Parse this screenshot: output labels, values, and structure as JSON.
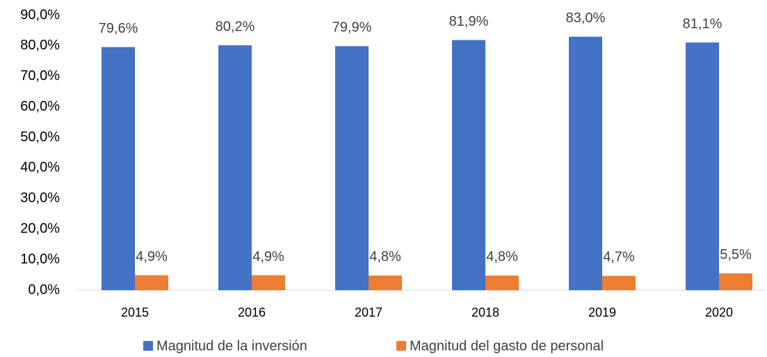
{
  "chart_data": {
    "type": "bar",
    "categories": [
      "2015",
      "2016",
      "2017",
      "2018",
      "2019",
      "2020"
    ],
    "series": [
      {
        "name": "Magnitud de la inversión",
        "color": "#4472c4",
        "values": [
          79.6,
          80.2,
          79.9,
          81.9,
          83.0,
          81.1
        ],
        "value_labels": [
          "79,6%",
          "80,2%",
          "79,9%",
          "81,9%",
          "83,0%",
          "81,1%"
        ]
      },
      {
        "name": "Magnitud del gasto de personal",
        "color": "#ed7d31",
        "values": [
          4.9,
          4.9,
          4.8,
          4.8,
          4.7,
          5.5
        ],
        "value_labels": [
          "4,9%",
          "4,9%",
          "4,8%",
          "4,8%",
          "4,7%",
          "5,5%"
        ]
      }
    ],
    "ylim": [
      0,
      90
    ],
    "yticks": [
      {
        "value": 0,
        "label": "0,0%"
      },
      {
        "value": 10,
        "label": "10,0%"
      },
      {
        "value": 20,
        "label": "20,0%"
      },
      {
        "value": 30,
        "label": "30,0%"
      },
      {
        "value": 40,
        "label": "40,0%"
      },
      {
        "value": 50,
        "label": "50,0%"
      },
      {
        "value": 60,
        "label": "60,0%"
      },
      {
        "value": 70,
        "label": "70,0%"
      },
      {
        "value": 80,
        "label": "80,0%"
      },
      {
        "value": 90,
        "label": "90,0%"
      }
    ],
    "grid": false,
    "legend": "bottom"
  }
}
